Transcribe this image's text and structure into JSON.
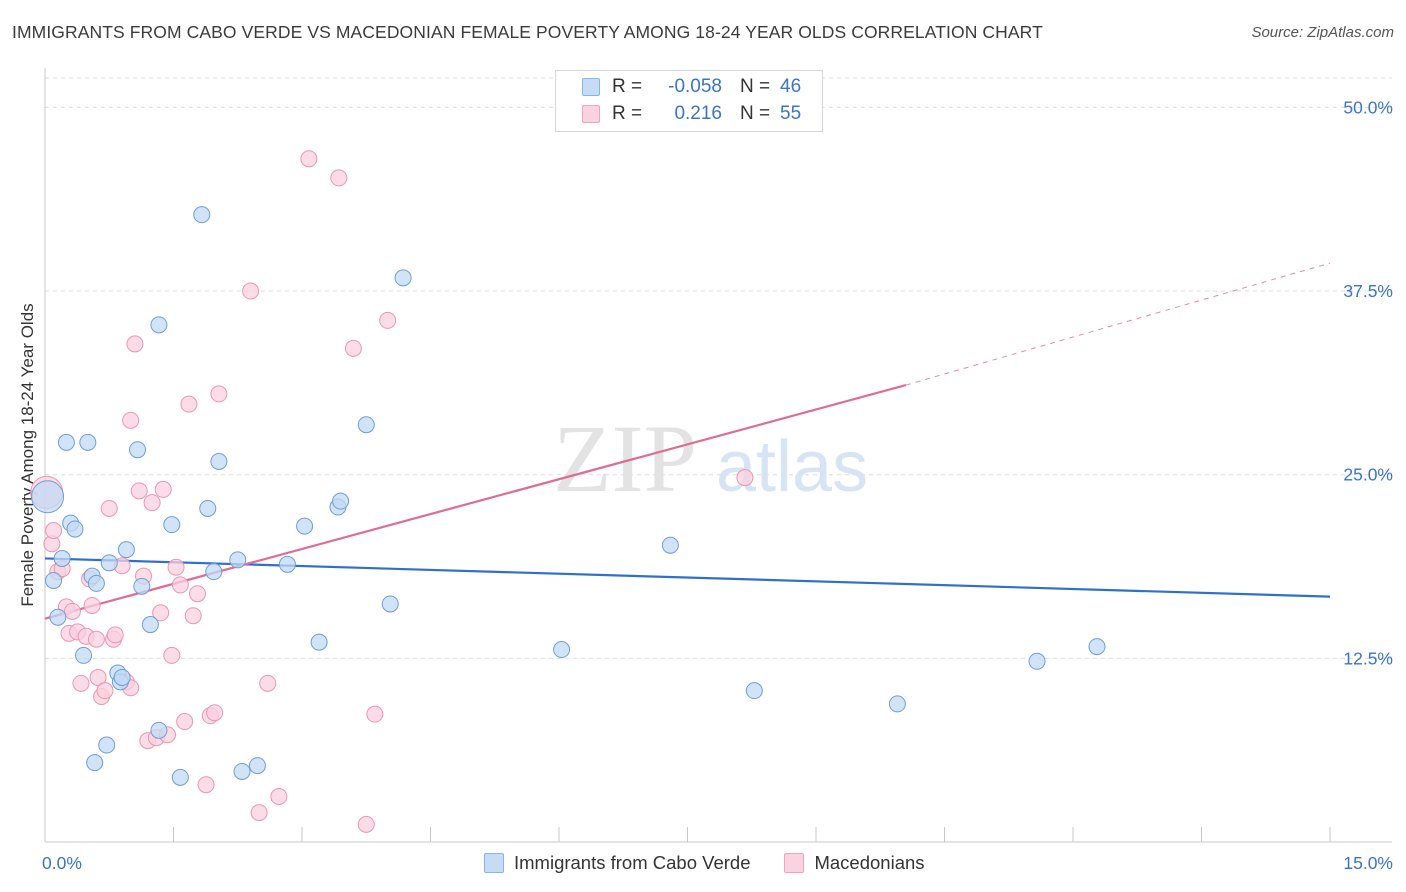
{
  "header": {
    "title": "IMMIGRANTS FROM CABO VERDE VS MACEDONIAN FEMALE POVERTY AMONG 18-24 YEAR OLDS CORRELATION CHART",
    "source": "Source: ZipAtlas.com"
  },
  "watermark": {
    "zip": "ZIP",
    "atlas": "atlas"
  },
  "legend": {
    "rows": [
      {
        "r_label": "R =",
        "r_value": "-0.058",
        "n_label": "N =",
        "n_value": "46",
        "color": "#8ab4e8",
        "fill": "#c6dbf6"
      },
      {
        "r_label": "R =",
        "r_value": "0.216",
        "n_label": "N =",
        "n_value": "55",
        "color": "#f0a3bb",
        "fill": "#fbd3e0"
      }
    ]
  },
  "bottom_legend": {
    "series_a": "Immigrants from Cabo Verde",
    "series_b": "Macedonians"
  },
  "colors": {
    "blue_point_fill": "#c2d9f4",
    "blue_point_stroke": "#6e9ed8",
    "blue_line": "#2f6fcf",
    "pink_point_fill": "#fbd0de",
    "pink_point_stroke": "#ec96b1",
    "pink_line": "#e06c96",
    "axis_text": "#3a74c9",
    "grid": "#dcdcdc"
  },
  "chart_data": {
    "type": "scatter",
    "title": "IMMIGRANTS FROM CABO VERDE VS MACEDONIAN FEMALE POVERTY AMONG 18-24 YEAR OLDS CORRELATION CHART",
    "xlabel": "",
    "ylabel": "Female Poverty Among 18-24 Year Olds",
    "xlim": [
      0,
      15
    ],
    "ylim": [
      0,
      52
    ],
    "x_tick_labels": [
      "0.0%",
      "15.0%"
    ],
    "y_ticks": [
      12.5,
      25.0,
      37.5,
      50.0
    ],
    "y_tick_labels": [
      "12.5%",
      "25.0%",
      "37.5%",
      "50.0%"
    ],
    "series": [
      {
        "name": "Immigrants from Cabo Verde",
        "color": "#6e9ed8",
        "points": [
          [
            0.03,
            23.5
          ],
          [
            0.1,
            17.8
          ],
          [
            0.15,
            15.3
          ],
          [
            0.2,
            19.3
          ],
          [
            0.25,
            27.2
          ],
          [
            0.3,
            21.7
          ],
          [
            0.35,
            21.3
          ],
          [
            0.45,
            12.7
          ],
          [
            0.5,
            27.2
          ],
          [
            0.55,
            18.1
          ],
          [
            0.6,
            17.6
          ],
          [
            0.72,
            6.6
          ],
          [
            0.58,
            5.4
          ],
          [
            0.75,
            19.0
          ],
          [
            0.85,
            11.5
          ],
          [
            0.88,
            10.9
          ],
          [
            0.95,
            19.9
          ],
          [
            1.08,
            26.7
          ],
          [
            1.13,
            17.4
          ],
          [
            1.23,
            14.8
          ],
          [
            1.33,
            7.6
          ],
          [
            1.33,
            35.2
          ],
          [
            1.48,
            21.6
          ],
          [
            1.58,
            4.4
          ],
          [
            1.83,
            42.7
          ],
          [
            1.9,
            22.7
          ],
          [
            1.97,
            18.4
          ],
          [
            2.03,
            25.9
          ],
          [
            2.25,
            19.2
          ],
          [
            2.3,
            4.8
          ],
          [
            2.48,
            5.2
          ],
          [
            2.83,
            18.9
          ],
          [
            3.03,
            21.5
          ],
          [
            3.2,
            13.6
          ],
          [
            3.42,
            22.8
          ],
          [
            3.45,
            23.2
          ],
          [
            3.75,
            28.4
          ],
          [
            4.03,
            16.2
          ],
          [
            4.18,
            38.4
          ],
          [
            6.03,
            13.1
          ],
          [
            7.3,
            20.2
          ],
          [
            8.28,
            10.3
          ],
          [
            9.95,
            9.4
          ],
          [
            11.58,
            12.3
          ],
          [
            12.28,
            13.3
          ],
          [
            0.9,
            11.2
          ]
        ]
      },
      {
        "name": "Macedonians",
        "color": "#ec96b1",
        "points": [
          [
            0.02,
            23.8
          ],
          [
            0.08,
            20.3
          ],
          [
            0.1,
            21.2
          ],
          [
            0.15,
            18.4
          ],
          [
            0.2,
            18.6
          ],
          [
            0.25,
            16.0
          ],
          [
            0.28,
            14.2
          ],
          [
            0.32,
            15.7
          ],
          [
            0.38,
            14.3
          ],
          [
            0.42,
            10.8
          ],
          [
            0.48,
            14.0
          ],
          [
            0.52,
            17.9
          ],
          [
            0.55,
            16.1
          ],
          [
            0.6,
            13.8
          ],
          [
            0.62,
            11.2
          ],
          [
            0.66,
            9.9
          ],
          [
            0.7,
            10.3
          ],
          [
            0.75,
            22.7
          ],
          [
            0.8,
            13.8
          ],
          [
            0.82,
            14.1
          ],
          [
            0.9,
            18.8
          ],
          [
            0.95,
            10.9
          ],
          [
            1.0,
            10.5
          ],
          [
            1.0,
            28.7
          ],
          [
            1.05,
            33.9
          ],
          [
            1.1,
            23.9
          ],
          [
            1.15,
            18.1
          ],
          [
            1.2,
            6.9
          ],
          [
            1.25,
            23.1
          ],
          [
            1.3,
            7.1
          ],
          [
            1.35,
            15.6
          ],
          [
            1.38,
            24.0
          ],
          [
            1.43,
            7.3
          ],
          [
            1.48,
            12.7
          ],
          [
            1.53,
            18.7
          ],
          [
            1.58,
            17.5
          ],
          [
            1.63,
            8.2
          ],
          [
            1.68,
            29.8
          ],
          [
            1.73,
            15.4
          ],
          [
            1.78,
            16.9
          ],
          [
            1.88,
            3.9
          ],
          [
            1.93,
            8.6
          ],
          [
            1.98,
            8.8
          ],
          [
            2.03,
            30.5
          ],
          [
            2.4,
            37.5
          ],
          [
            2.5,
            2.0
          ],
          [
            2.6,
            10.8
          ],
          [
            2.73,
            3.1
          ],
          [
            3.08,
            46.5
          ],
          [
            3.43,
            45.2
          ],
          [
            3.6,
            33.6
          ],
          [
            3.75,
            1.2
          ],
          [
            3.85,
            8.7
          ],
          [
            4.0,
            35.5
          ],
          [
            8.17,
            24.8
          ]
        ]
      }
    ],
    "trend_lines": [
      {
        "series": "Immigrants from Cabo Verde",
        "x": [
          0,
          15
        ],
        "y": [
          19.3,
          16.7
        ],
        "style": "solid"
      },
      {
        "series": "Macedonians",
        "x": [
          0,
          10.05
        ],
        "y": [
          15.2,
          31.1
        ],
        "style": "solid"
      },
      {
        "series": "Macedonians",
        "x": [
          10.05,
          15
        ],
        "y": [
          31.1,
          39.4
        ],
        "style": "dashed"
      }
    ]
  }
}
